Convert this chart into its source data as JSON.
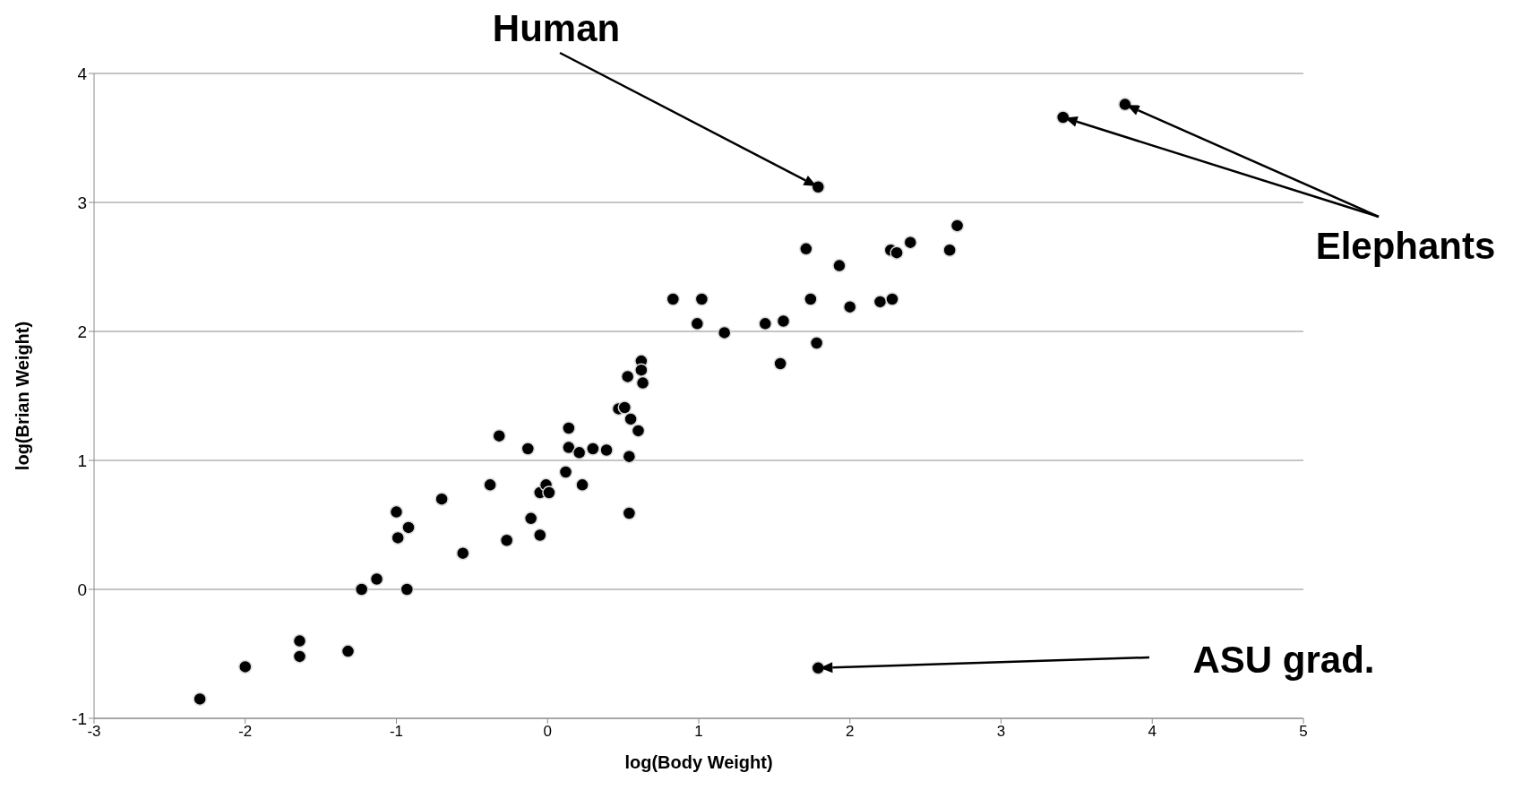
{
  "chart_data": {
    "type": "scatter",
    "xlabel": "log(Body Weight)",
    "ylabel": "log(Brian Weight)",
    "xlim": [
      -3,
      5
    ],
    "xticks": [
      -3,
      -2,
      -1,
      0,
      1,
      2,
      3,
      4,
      5
    ],
    "ylim": [
      -1,
      4
    ],
    "yticks": [
      -1,
      0,
      1,
      2,
      3,
      4
    ],
    "grid": "y",
    "marker": "circle",
    "legend": false,
    "series": [
      {
        "color": "#000000",
        "x": [
          -2.3,
          -2.0,
          -1.64,
          -1.64,
          -1.32,
          -1.23,
          -1.13,
          -0.93,
          -1.0,
          -0.99,
          -0.92,
          -0.7,
          -0.56,
          -0.38,
          -0.32,
          -0.27,
          -0.13,
          -0.11,
          -0.05,
          -0.05,
          -0.01,
          0.01,
          0.12,
          0.14,
          0.14,
          0.21,
          0.23,
          0.3,
          0.39,
          0.47,
          0.51,
          0.53,
          0.54,
          0.54,
          0.55,
          0.6,
          0.62,
          0.62,
          0.63,
          0.83,
          0.99,
          1.02,
          1.17,
          1.44,
          1.54,
          1.56,
          1.71,
          1.74,
          1.78,
          1.79,
          1.79,
          1.93,
          2.0,
          2.2,
          2.27,
          2.28,
          2.31,
          2.4,
          2.66,
          2.71,
          3.41,
          3.82
        ],
        "values": [
          -0.85,
          -0.6,
          -0.4,
          -0.52,
          -0.48,
          0,
          0.08,
          0,
          0.6,
          0.4,
          0.48,
          0.7,
          0.28,
          0.81,
          1.19,
          0.38,
          1.09,
          0.55,
          0.42,
          0.75,
          0.81,
          0.75,
          0.91,
          1.25,
          1.1,
          1.06,
          0.81,
          1.09,
          1.08,
          1.4,
          1.41,
          1.65,
          1.03,
          0.59,
          1.32,
          1.23,
          1.77,
          1.7,
          1.6,
          2.25,
          2.06,
          2.25,
          1.99,
          2.06,
          1.75,
          2.08,
          2.64,
          2.25,
          1.91,
          3.12,
          -0.61,
          2.51,
          2.19,
          2.23,
          2.63,
          2.25,
          2.61,
          2.69,
          2.63,
          2.82,
          3.66,
          3.76
        ]
      }
    ],
    "annotations": [
      "Human",
      "Elephants",
      "ASU grad."
    ]
  }
}
